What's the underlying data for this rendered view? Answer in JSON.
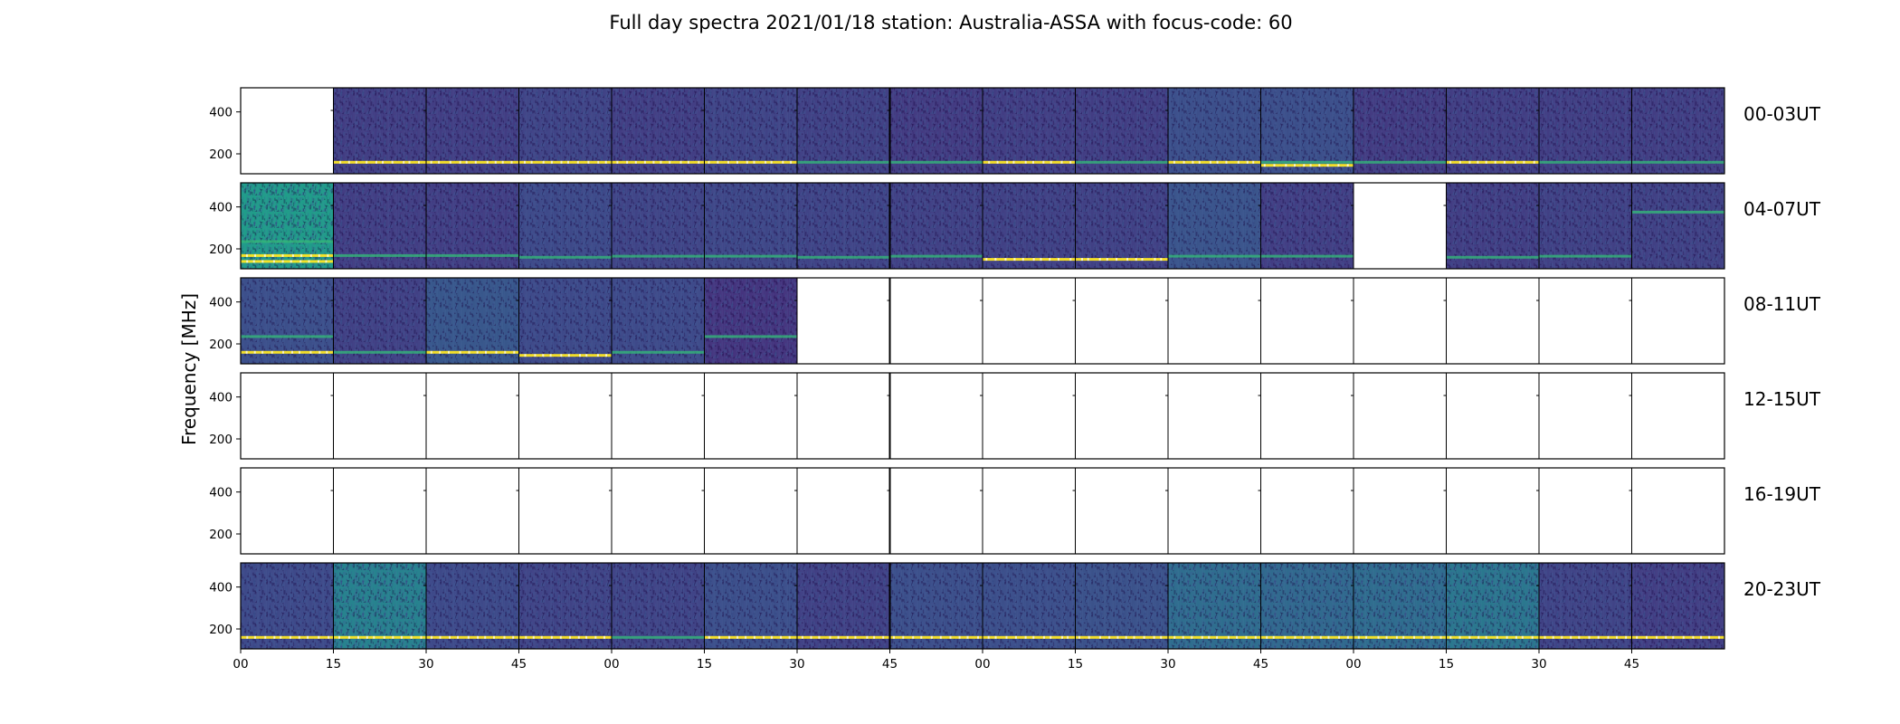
{
  "chart_data": {
    "type": "heatmap",
    "title": "Full day spectra 2021/01/18 station: Australia-ASSA with focus-code: 60",
    "ylabel": "Frequency [MHz]",
    "yticks": [
      400,
      200
    ],
    "ylim": [
      105,
      515
    ],
    "colormap": "viridis",
    "xticks": [
      "00",
      "15",
      "30",
      "45",
      "00",
      "15",
      "30",
      "45",
      "00",
      "15",
      "30",
      "45",
      "00",
      "15",
      "30",
      "45"
    ],
    "rows": [
      {
        "label": "00-03UT",
        "panels": [
          {
            "data": false
          },
          {
            "data": true,
            "brightness": 0.18,
            "bands": [
              {
                "freq": 160,
                "level": "yellow"
              }
            ]
          },
          {
            "data": true,
            "brightness": 0.18,
            "bands": [
              {
                "freq": 160,
                "level": "yellow"
              }
            ]
          },
          {
            "data": true,
            "brightness": 0.2,
            "bands": [
              {
                "freq": 160,
                "level": "yellow"
              }
            ]
          },
          {
            "data": true,
            "brightness": 0.18,
            "bands": [
              {
                "freq": 160,
                "level": "yellow"
              }
            ]
          },
          {
            "data": true,
            "brightness": 0.2,
            "bands": [
              {
                "freq": 160,
                "level": "yellow"
              }
            ]
          },
          {
            "data": true,
            "brightness": 0.19,
            "bands": [
              {
                "freq": 160,
                "level": "teal"
              }
            ]
          },
          {
            "data": true,
            "brightness": 0.17,
            "bands": [
              {
                "freq": 160,
                "level": "teal"
              }
            ]
          },
          {
            "data": true,
            "brightness": 0.18,
            "bands": [
              {
                "freq": 160,
                "level": "yellow"
              }
            ]
          },
          {
            "data": true,
            "brightness": 0.18,
            "bands": [
              {
                "freq": 160,
                "level": "teal"
              }
            ]
          },
          {
            "data": true,
            "brightness": 0.24,
            "bands": [
              {
                "freq": 160,
                "level": "yellow"
              }
            ]
          },
          {
            "data": true,
            "brightness": 0.24,
            "bands": [
              {
                "freq": 160,
                "level": "teal"
              },
              {
                "freq": 145,
                "level": "yellow"
              }
            ]
          },
          {
            "data": true,
            "brightness": 0.17,
            "bands": [
              {
                "freq": 160,
                "level": "teal"
              }
            ]
          },
          {
            "data": true,
            "brightness": 0.18,
            "bands": [
              {
                "freq": 160,
                "level": "yellow"
              }
            ]
          },
          {
            "data": true,
            "brightness": 0.18,
            "bands": [
              {
                "freq": 160,
                "level": "teal"
              }
            ]
          },
          {
            "data": true,
            "brightness": 0.18,
            "bands": [
              {
                "freq": 160,
                "level": "teal"
              }
            ]
          }
        ]
      },
      {
        "label": "04-07UT",
        "panels": [
          {
            "data": true,
            "brightness": 0.55,
            "bands": [
              {
                "freq": 235,
                "level": "teal"
              },
              {
                "freq": 168,
                "level": "yellow"
              },
              {
                "freq": 140,
                "level": "yellow"
              }
            ]
          },
          {
            "data": true,
            "brightness": 0.18,
            "bands": [
              {
                "freq": 168,
                "level": "teal"
              }
            ]
          },
          {
            "data": true,
            "brightness": 0.18,
            "bands": [
              {
                "freq": 168,
                "level": "teal"
              }
            ]
          },
          {
            "data": true,
            "brightness": 0.22,
            "bands": [
              {
                "freq": 160,
                "level": "teal"
              }
            ]
          },
          {
            "data": true,
            "brightness": 0.2,
            "bands": [
              {
                "freq": 165,
                "level": "teal"
              }
            ]
          },
          {
            "data": true,
            "brightness": 0.21,
            "bands": [
              {
                "freq": 165,
                "level": "teal"
              }
            ]
          },
          {
            "data": true,
            "brightness": 0.2,
            "bands": [
              {
                "freq": 160,
                "level": "teal"
              }
            ]
          },
          {
            "data": true,
            "brightness": 0.19,
            "bands": [
              {
                "freq": 165,
                "level": "teal"
              }
            ]
          },
          {
            "data": true,
            "brightness": 0.19,
            "bands": [
              {
                "freq": 150,
                "level": "yellow"
              }
            ]
          },
          {
            "data": true,
            "brightness": 0.19,
            "bands": [
              {
                "freq": 150,
                "level": "yellow"
              }
            ]
          },
          {
            "data": true,
            "brightness": 0.26,
            "bands": [
              {
                "freq": 165,
                "level": "teal"
              }
            ]
          },
          {
            "data": true,
            "brightness": 0.18,
            "bands": [
              {
                "freq": 165,
                "level": "teal"
              }
            ]
          },
          {
            "data": false
          },
          {
            "data": true,
            "brightness": 0.18,
            "bands": [
              {
                "freq": 160,
                "level": "teal"
              }
            ]
          },
          {
            "data": true,
            "brightness": 0.19,
            "bands": [
              {
                "freq": 165,
                "level": "teal"
              }
            ]
          },
          {
            "data": true,
            "brightness": 0.19,
            "bands": [
              {
                "freq": 375,
                "level": "teal"
              }
            ]
          }
        ]
      },
      {
        "label": "08-11UT",
        "panels": [
          {
            "data": true,
            "brightness": 0.24,
            "bands": [
              {
                "freq": 235,
                "level": "teal"
              },
              {
                "freq": 160,
                "level": "yellow"
              }
            ]
          },
          {
            "data": true,
            "brightness": 0.19,
            "bands": [
              {
                "freq": 160,
                "level": "teal"
              }
            ]
          },
          {
            "data": true,
            "brightness": 0.27,
            "bands": [
              {
                "freq": 160,
                "level": "yellow"
              }
            ]
          },
          {
            "data": true,
            "brightness": 0.22,
            "bands": [
              {
                "freq": 145,
                "level": "yellow"
              }
            ]
          },
          {
            "data": true,
            "brightness": 0.22,
            "bands": [
              {
                "freq": 160,
                "level": "teal"
              }
            ]
          },
          {
            "data": true,
            "brightness": 0.15,
            "bands": [
              {
                "freq": 235,
                "level": "teal"
              }
            ]
          },
          {
            "data": false
          },
          {
            "data": false
          },
          {
            "data": false
          },
          {
            "data": false
          },
          {
            "data": false
          },
          {
            "data": false
          },
          {
            "data": false
          },
          {
            "data": false
          },
          {
            "data": false
          },
          {
            "data": false
          }
        ]
      },
      {
        "label": "12-15UT",
        "panels": [
          {
            "data": false
          },
          {
            "data": false
          },
          {
            "data": false
          },
          {
            "data": false
          },
          {
            "data": false
          },
          {
            "data": false
          },
          {
            "data": false
          },
          {
            "data": false
          },
          {
            "data": false
          },
          {
            "data": false
          },
          {
            "data": false
          },
          {
            "data": false
          },
          {
            "data": false
          },
          {
            "data": false
          },
          {
            "data": false
          },
          {
            "data": false
          }
        ]
      },
      {
        "label": "16-19UT",
        "panels": [
          {
            "data": false
          },
          {
            "data": false
          },
          {
            "data": false
          },
          {
            "data": false
          },
          {
            "data": false
          },
          {
            "data": false
          },
          {
            "data": false
          },
          {
            "data": false
          },
          {
            "data": false
          },
          {
            "data": false
          },
          {
            "data": false
          },
          {
            "data": false
          },
          {
            "data": false
          },
          {
            "data": false
          },
          {
            "data": false
          },
          {
            "data": false
          }
        ]
      },
      {
        "label": "20-23UT",
        "panels": [
          {
            "data": true,
            "brightness": 0.22,
            "bands": [
              {
                "freq": 160,
                "level": "yellow"
              }
            ]
          },
          {
            "data": true,
            "brightness": 0.45,
            "bands": [
              {
                "freq": 160,
                "level": "yellow"
              }
            ]
          },
          {
            "data": true,
            "brightness": 0.22,
            "bands": [
              {
                "freq": 160,
                "level": "yellow"
              }
            ]
          },
          {
            "data": true,
            "brightness": 0.2,
            "bands": [
              {
                "freq": 160,
                "level": "yellow"
              }
            ]
          },
          {
            "data": true,
            "brightness": 0.2,
            "bands": [
              {
                "freq": 160,
                "level": "teal"
              }
            ]
          },
          {
            "data": true,
            "brightness": 0.24,
            "bands": [
              {
                "freq": 160,
                "level": "yellow"
              }
            ]
          },
          {
            "data": true,
            "brightness": 0.19,
            "bands": [
              {
                "freq": 160,
                "level": "yellow"
              }
            ]
          },
          {
            "data": true,
            "brightness": 0.24,
            "bands": [
              {
                "freq": 160,
                "level": "yellow"
              }
            ]
          },
          {
            "data": true,
            "brightness": 0.24,
            "bands": [
              {
                "freq": 160,
                "level": "yellow"
              }
            ]
          },
          {
            "data": true,
            "brightness": 0.25,
            "bands": [
              {
                "freq": 160,
                "level": "yellow"
              }
            ]
          },
          {
            "data": true,
            "brightness": 0.36,
            "bands": [
              {
                "freq": 160,
                "level": "yellow"
              }
            ]
          },
          {
            "data": true,
            "brightness": 0.34,
            "bands": [
              {
                "freq": 160,
                "level": "yellow"
              }
            ]
          },
          {
            "data": true,
            "brightness": 0.36,
            "bands": [
              {
                "freq": 160,
                "level": "yellow"
              }
            ]
          },
          {
            "data": true,
            "brightness": 0.4,
            "bands": [
              {
                "freq": 160,
                "level": "yellow"
              }
            ]
          },
          {
            "data": true,
            "brightness": 0.2,
            "bands": [
              {
                "freq": 160,
                "level": "yellow"
              }
            ]
          },
          {
            "data": true,
            "brightness": 0.18,
            "bands": [
              {
                "freq": 160,
                "level": "yellow"
              }
            ]
          }
        ]
      }
    ]
  }
}
